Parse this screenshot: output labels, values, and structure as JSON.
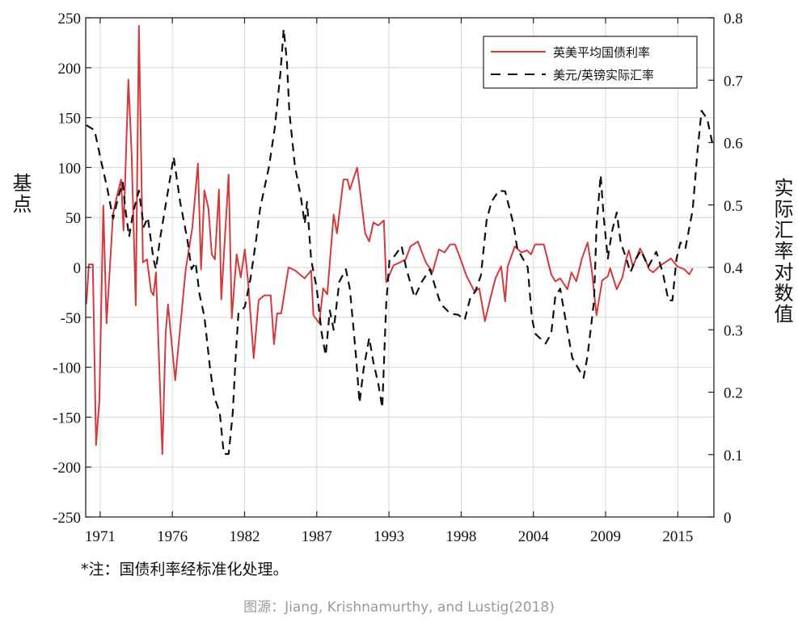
{
  "chart_data": {
    "type": "line",
    "title": "",
    "xlabel": "",
    "ylabel": "基点",
    "ylabel_right": "实际汇率对数值",
    "xlim": [
      1969.9,
      2017.75
    ],
    "ylim": [
      -250,
      250
    ],
    "ylim_right": [
      0,
      0.8
    ],
    "grid": true,
    "legend_position": "top-right",
    "x_ticks": [
      {
        "value": 1971,
        "label": "1971"
      },
      {
        "value": 1976.5,
        "label": "1976"
      },
      {
        "value": 1982,
        "label": "1982"
      },
      {
        "value": 1987.5,
        "label": "1987"
      },
      {
        "value": 1993,
        "label": "1993"
      },
      {
        "value": 1998.5,
        "label": "1998"
      },
      {
        "value": 2004,
        "label": "2004"
      },
      {
        "value": 2009.5,
        "label": "2009"
      },
      {
        "value": 2015,
        "label": "2015"
      }
    ],
    "y_ticks": [
      "-250",
      "-200",
      "-150",
      "-100",
      "-50",
      "0",
      "50",
      "100",
      "150",
      "200",
      "250"
    ],
    "y_ticks_right": [
      "0",
      "0.1",
      "0.2",
      "0.3",
      "0.4",
      "0.5",
      "0.6",
      "0.7",
      "0.8"
    ],
    "series": [
      {
        "name": "英美平均国债利率",
        "axis": "left",
        "color": "#d23a3c",
        "style": "solid",
        "points": [
          [
            1969.95,
            -37
          ],
          [
            1970.14,
            3
          ],
          [
            1970.44,
            3
          ],
          [
            1970.69,
            -178
          ],
          [
            1970.94,
            -133
          ],
          [
            1971.24,
            62
          ],
          [
            1971.49,
            -56
          ],
          [
            1971.98,
            53
          ],
          [
            1972.29,
            72
          ],
          [
            1972.6,
            88
          ],
          [
            1972.78,
            37
          ],
          [
            1973.15,
            188
          ],
          [
            1973.4,
            114
          ],
          [
            1973.71,
            -38
          ],
          [
            1973.95,
            242
          ],
          [
            1974.26,
            5
          ],
          [
            1974.57,
            8
          ],
          [
            1974.88,
            -24
          ],
          [
            1975.06,
            -28
          ],
          [
            1975.25,
            -5
          ],
          [
            1975.74,
            -187
          ],
          [
            1975.99,
            -66
          ],
          [
            1976.17,
            -37
          ],
          [
            1976.72,
            -113
          ],
          [
            1977.52,
            -2
          ],
          [
            1978.02,
            40
          ],
          [
            1978.45,
            104
          ],
          [
            1978.69,
            -2
          ],
          [
            1978.94,
            77
          ],
          [
            1979.25,
            59
          ],
          [
            1979.5,
            13
          ],
          [
            1979.74,
            8
          ],
          [
            1980.05,
            78
          ],
          [
            1980.23,
            -32
          ],
          [
            1980.79,
            93
          ],
          [
            1981.03,
            -51
          ],
          [
            1981.4,
            13
          ],
          [
            1981.71,
            -10
          ],
          [
            1982.02,
            18
          ],
          [
            1982.27,
            -15
          ],
          [
            1982.7,
            -91
          ],
          [
            1983.07,
            -33
          ],
          [
            1983.5,
            -28
          ],
          [
            1983.99,
            -28
          ],
          [
            1984.24,
            -77
          ],
          [
            1984.48,
            -46
          ],
          [
            1984.79,
            -46
          ],
          [
            1985.35,
            0
          ],
          [
            1985.84,
            -3
          ],
          [
            1986.58,
            -11
          ],
          [
            1987.07,
            -3
          ],
          [
            1987.25,
            -48
          ],
          [
            1987.69,
            -56
          ],
          [
            1987.99,
            -21
          ],
          [
            1988.3,
            -27
          ],
          [
            1988.79,
            53
          ],
          [
            1989.04,
            34
          ],
          [
            1989.53,
            88
          ],
          [
            1989.84,
            88
          ],
          [
            1990.02,
            78
          ],
          [
            1990.58,
            100
          ],
          [
            1991.19,
            34
          ],
          [
            1991.5,
            26
          ],
          [
            1991.81,
            45
          ],
          [
            1992.18,
            42
          ],
          [
            1992.61,
            47
          ],
          [
            1992.79,
            -15
          ],
          [
            1993.35,
            2
          ],
          [
            1993.84,
            5
          ],
          [
            1994.27,
            8
          ],
          [
            1994.64,
            21
          ],
          [
            1995.2,
            26
          ],
          [
            1995.81,
            5
          ],
          [
            1996.31,
            -5
          ],
          [
            1996.8,
            18
          ],
          [
            1997.23,
            15
          ],
          [
            1997.66,
            23
          ],
          [
            1998.03,
            23
          ],
          [
            1998.46,
            8
          ],
          [
            1998.89,
            -8
          ],
          [
            1999.51,
            -24
          ],
          [
            1999.88,
            -21
          ],
          [
            2000.31,
            -54
          ],
          [
            2000.74,
            -30
          ],
          [
            2001.11,
            -11
          ],
          [
            2001.54,
            1
          ],
          [
            2001.85,
            -34
          ],
          [
            2002.04,
            1
          ],
          [
            2002.59,
            21
          ],
          [
            2003.08,
            15
          ],
          [
            2003.51,
            17
          ],
          [
            2003.82,
            13
          ],
          [
            2004.13,
            23
          ],
          [
            2004.8,
            23
          ],
          [
            2005.36,
            -7
          ],
          [
            2005.67,
            -14
          ],
          [
            2006.04,
            -11
          ],
          [
            2006.59,
            -22
          ],
          [
            2006.9,
            -5
          ],
          [
            2007.27,
            -14
          ],
          [
            2007.7,
            9
          ],
          [
            2008.13,
            25
          ],
          [
            2008.44,
            -2
          ],
          [
            2008.81,
            -48
          ],
          [
            2009.24,
            -13
          ],
          [
            2009.67,
            -9
          ],
          [
            2009.85,
            -1
          ],
          [
            2010.35,
            -22
          ],
          [
            2010.78,
            -10
          ],
          [
            2011.08,
            9
          ],
          [
            2011.27,
            17
          ],
          [
            2011.58,
            1
          ],
          [
            2012.13,
            19
          ],
          [
            2012.5,
            9
          ],
          [
            2012.81,
            -2
          ],
          [
            2013.12,
            -5
          ],
          [
            2013.67,
            2
          ],
          [
            2014.04,
            5
          ],
          [
            2014.47,
            9
          ],
          [
            2014.96,
            1
          ],
          [
            2015.51,
            -2
          ],
          [
            2015.88,
            -7
          ],
          [
            2016.13,
            -1
          ]
        ]
      },
      {
        "name": "美元/英镑实际汇率",
        "axis": "right",
        "color": "#111111",
        "style": "dashed",
        "points": [
          [
            1969.95,
            0.628
          ],
          [
            1970.57,
            0.62
          ],
          [
            1971.06,
            0.572
          ],
          [
            1971.55,
            0.526
          ],
          [
            1971.98,
            0.478
          ],
          [
            1972.41,
            0.515
          ],
          [
            1972.72,
            0.536
          ],
          [
            1972.91,
            0.495
          ],
          [
            1973.21,
            0.449
          ],
          [
            1973.52,
            0.489
          ],
          [
            1973.95,
            0.523
          ],
          [
            1974.32,
            0.465
          ],
          [
            1974.63,
            0.48
          ],
          [
            1975.06,
            0.413
          ],
          [
            1975.25,
            0.397
          ],
          [
            1975.55,
            0.444
          ],
          [
            1976.11,
            0.515
          ],
          [
            1976.6,
            0.577
          ],
          [
            1977.09,
            0.505
          ],
          [
            1977.65,
            0.444
          ],
          [
            1977.96,
            0.397
          ],
          [
            1978.26,
            0.408
          ],
          [
            1978.57,
            0.357
          ],
          [
            1978.94,
            0.321
          ],
          [
            1979.37,
            0.238
          ],
          [
            1979.68,
            0.193
          ],
          [
            1980.11,
            0.167
          ],
          [
            1980.42,
            0.101
          ],
          [
            1980.79,
            0.101
          ],
          [
            1981.1,
            0.167
          ],
          [
            1981.34,
            0.264
          ],
          [
            1981.53,
            0.326
          ],
          [
            1982.02,
            0.337
          ],
          [
            1982.45,
            0.382
          ],
          [
            1982.88,
            0.444
          ],
          [
            1983.19,
            0.495
          ],
          [
            1983.87,
            0.562
          ],
          [
            1984.3,
            0.623
          ],
          [
            1984.73,
            0.711
          ],
          [
            1984.98,
            0.782
          ],
          [
            1985.22,
            0.731
          ],
          [
            1985.41,
            0.649
          ],
          [
            1985.84,
            0.562
          ],
          [
            1986.27,
            0.515
          ],
          [
            1986.58,
            0.47
          ],
          [
            1986.76,
            0.505
          ],
          [
            1987.07,
            0.413
          ],
          [
            1987.5,
            0.366
          ],
          [
            1987.87,
            0.295
          ],
          [
            1988.18,
            0.259
          ],
          [
            1988.49,
            0.331
          ],
          [
            1988.79,
            0.3
          ],
          [
            1989.22,
            0.377
          ],
          [
            1989.72,
            0.397
          ],
          [
            1990.02,
            0.366
          ],
          [
            1990.46,
            0.264
          ],
          [
            1990.76,
            0.183
          ],
          [
            1991.07,
            0.238
          ],
          [
            1991.5,
            0.287
          ],
          [
            1991.81,
            0.248
          ],
          [
            1992.18,
            0.214
          ],
          [
            1992.49,
            0.175
          ],
          [
            1992.79,
            0.342
          ],
          [
            1993.04,
            0.413
          ],
          [
            1993.41,
            0.418
          ],
          [
            1993.96,
            0.434
          ],
          [
            1994.33,
            0.397
          ],
          [
            1994.95,
            0.352
          ],
          [
            1995.5,
            0.377
          ],
          [
            1996.12,
            0.397
          ],
          [
            1996.49,
            0.371
          ],
          [
            1996.92,
            0.342
          ],
          [
            1997.66,
            0.326
          ],
          [
            1998.28,
            0.324
          ],
          [
            1998.77,
            0.316
          ],
          [
            1999.2,
            0.352
          ],
          [
            1999.57,
            0.361
          ],
          [
            2000.0,
            0.387
          ],
          [
            2000.43,
            0.475
          ],
          [
            2000.8,
            0.505
          ],
          [
            2001.36,
            0.523
          ],
          [
            2001.85,
            0.522
          ],
          [
            2002.47,
            0.47
          ],
          [
            2002.77,
            0.43
          ],
          [
            2003.57,
            0.4
          ],
          [
            2003.88,
            0.32
          ],
          [
            2004.13,
            0.294
          ],
          [
            2004.93,
            0.278
          ],
          [
            2005.36,
            0.294
          ],
          [
            2005.67,
            0.353
          ],
          [
            2006.04,
            0.366
          ],
          [
            2006.35,
            0.328
          ],
          [
            2006.96,
            0.255
          ],
          [
            2007.82,
            0.223
          ],
          [
            2008.13,
            0.259
          ],
          [
            2008.62,
            0.346
          ],
          [
            2008.81,
            0.466
          ],
          [
            2009.12,
            0.548
          ],
          [
            2009.36,
            0.479
          ],
          [
            2009.67,
            0.414
          ],
          [
            2009.98,
            0.457
          ],
          [
            2010.35,
            0.488
          ],
          [
            2010.65,
            0.44
          ],
          [
            2011.08,
            0.414
          ],
          [
            2011.39,
            0.392
          ],
          [
            2011.82,
            0.414
          ],
          [
            2012.19,
            0.427
          ],
          [
            2012.75,
            0.401
          ],
          [
            2013.36,
            0.425
          ],
          [
            2013.85,
            0.392
          ],
          [
            2014.28,
            0.347
          ],
          [
            2014.59,
            0.347
          ],
          [
            2014.9,
            0.414
          ],
          [
            2015.2,
            0.44
          ],
          [
            2015.58,
            0.431
          ],
          [
            2016.13,
            0.492
          ],
          [
            2016.5,
            0.586
          ],
          [
            2016.81,
            0.651
          ],
          [
            2017.24,
            0.638
          ],
          [
            2017.67,
            0.595
          ]
        ]
      }
    ],
    "annotations": {
      "note": "*注：国债利率经标准化处理。",
      "source": "图源：Jiang, Krishnamurthy, and Lustig(2018)"
    }
  }
}
